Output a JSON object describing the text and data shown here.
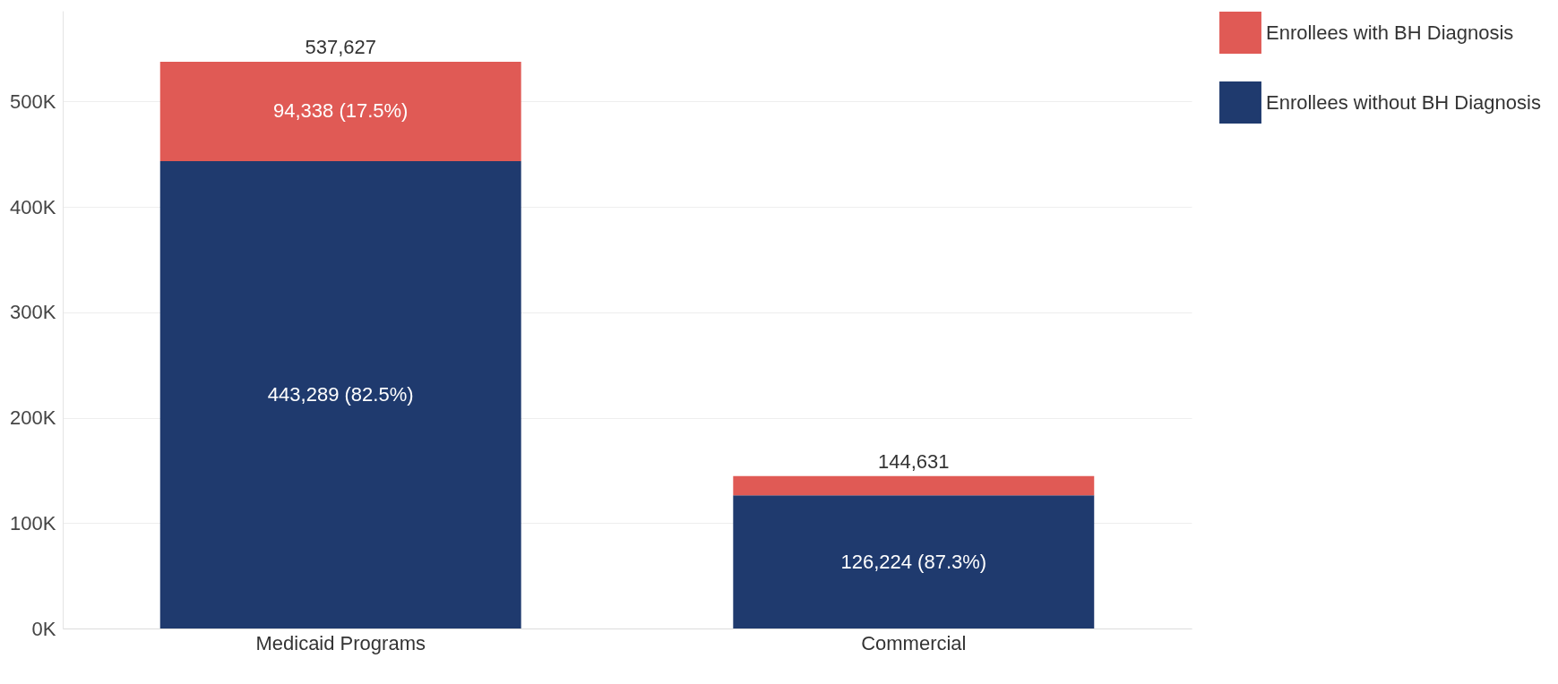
{
  "chart_data": {
    "type": "bar",
    "stacked": true,
    "categories": [
      "Medicaid Programs",
      "Commercial"
    ],
    "series": [
      {
        "name": "Enrollees without BH Diagnosis",
        "color": "#1f3a6e",
        "values": [
          443289,
          126224
        ],
        "value_labels": [
          "443,289 (82.5%)",
          "126,224 (87.3%)"
        ]
      },
      {
        "name": "Enrollees with BH Diagnosis",
        "color": "#e05a55",
        "values": [
          94338,
          18407
        ],
        "value_labels": [
          "94,338 (17.5%)",
          null
        ]
      }
    ],
    "totals": [
      "537,627",
      "144,631"
    ],
    "ylim": [
      0,
      586000
    ],
    "yticks": [
      {
        "value": 0,
        "label": "0K"
      },
      {
        "value": 100000,
        "label": "100K"
      },
      {
        "value": 200000,
        "label": "200K"
      },
      {
        "value": 300000,
        "label": "300K"
      },
      {
        "value": 400000,
        "label": "400K"
      },
      {
        "value": 500000,
        "label": "500K"
      }
    ],
    "grid": "y",
    "legend": "right"
  }
}
